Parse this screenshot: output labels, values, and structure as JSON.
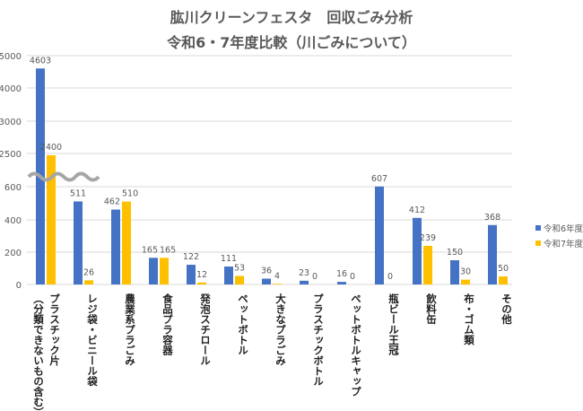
{
  "chart_data": {
    "type": "bar",
    "title": "肱川クリーンフェスタ　回収ごみ分析",
    "subtitle": "令和6・7年度比較（川ごみについて）",
    "categories": [
      [
        "プラスチック片",
        "（分類できないもの含む）"
      ],
      [
        "レジ袋・ビニール袋"
      ],
      [
        "農業系プラごみ"
      ],
      [
        "食品プラ容器"
      ],
      [
        "発泡スチロール"
      ],
      [
        "ペットボトル"
      ],
      [
        "大きなプラごみ"
      ],
      [
        "プラスチックボトル"
      ],
      [
        "ペットボトルキャップ"
      ],
      [
        "瓶ビール王冠"
      ],
      [
        "飲料缶"
      ],
      [
        "布・ゴム類"
      ],
      [
        "その他"
      ]
    ],
    "series": [
      {
        "name": "令和6年度",
        "color": "#4472C4",
        "values": [
          4603,
          511,
          462,
          165,
          122,
          111,
          36,
          23,
          16,
          607,
          412,
          150,
          368
        ]
      },
      {
        "name": "令和7年度",
        "color": "#FFC000",
        "values": [
          2400,
          26,
          510,
          165,
          12,
          53,
          4,
          0,
          0,
          0,
          239,
          30,
          50
        ]
      }
    ],
    "y_ticks": [
      0,
      200,
      400,
      600,
      2500,
      3000,
      4000,
      5000
    ],
    "axis_break": "between 600 and 2500",
    "grid": true,
    "legend": "right"
  }
}
